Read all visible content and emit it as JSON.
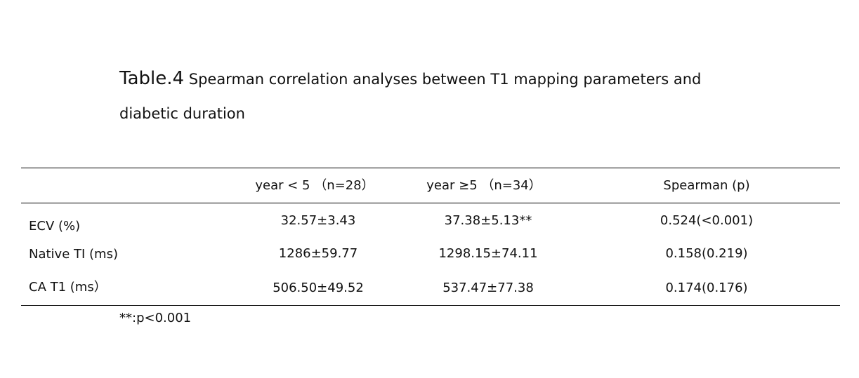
{
  "title": {
    "label": "Table.4",
    "text": "Spearman correlation analyses between T1 mapping parameters and",
    "continuation": "diabetic duration"
  },
  "table": {
    "headers": [
      "",
      "year < 5 （n=28）",
      "year ≥5 （n=34）",
      "Spearman (p)"
    ],
    "rows": [
      {
        "label": "ECV (%)",
        "cells": [
          "32.57±3.43",
          "37.38±5.13**",
          "0.524(<0.001)"
        ]
      },
      {
        "label": "Native TI (ms)",
        "cells": [
          "1286±59.77",
          "1298.15±74.11",
          "0.158(0.219)"
        ]
      },
      {
        "label": "CA T1 (ms）",
        "cells": [
          "506.50±49.52",
          "537.47±77.38",
          "0.174(0.176)"
        ]
      }
    ]
  },
  "footnote": "**:p<0.001"
}
